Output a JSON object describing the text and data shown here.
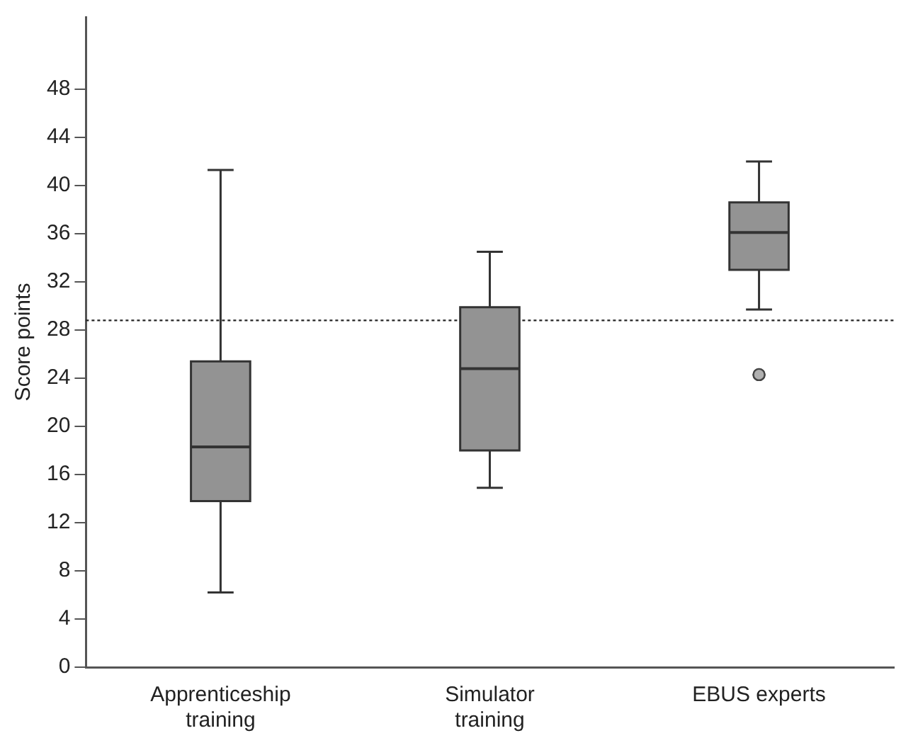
{
  "chart_data": {
    "type": "box",
    "ylabel": "Score points",
    "categories": [
      "Apprenticeship training",
      "Simulator training",
      "EBUS experts"
    ],
    "boxes": [
      {
        "low": 6.2,
        "q1": 13.8,
        "median": 18.3,
        "q3": 25.4,
        "high": 41.3
      },
      {
        "low": 14.9,
        "q1": 18.0,
        "median": 24.8,
        "q3": 29.9,
        "high": 34.5
      },
      {
        "low": 29.7,
        "q1": 33.0,
        "median": 36.1,
        "q3": 38.6,
        "high": 42.0,
        "outliers": [
          24.3
        ]
      }
    ],
    "color": "#939393",
    "ylim": [
      0,
      54
    ],
    "yticks": [
      0,
      4,
      8,
      12,
      16,
      20,
      24,
      28,
      32,
      36,
      40,
      44,
      48
    ],
    "ref_lines": [
      {
        "axis": "y",
        "value": 28.8,
        "line_style": "dotted",
        "color": "#222222"
      }
    ],
    "grid": false,
    "legend": false
  }
}
